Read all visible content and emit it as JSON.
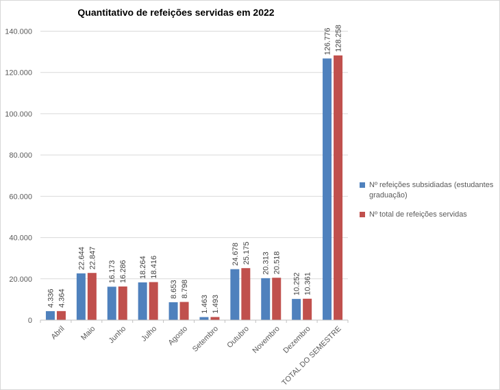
{
  "chart_data": {
    "type": "bar",
    "title": "Quantitativo de refeições servidas em 2022",
    "categories": [
      "Abril",
      "Maio",
      "Junho",
      "Julho",
      "Agosto",
      "Setembro",
      "Outubro",
      "Novembro",
      "Dezembro",
      "TOTAL DO SEMESTRE"
    ],
    "series": [
      {
        "name": "Nº refeições subsidiadas (estudantes graduação)",
        "color": "#4F81BD",
        "values": [
          4336,
          22644,
          16173,
          18264,
          8653,
          1463,
          24678,
          20313,
          10252,
          126776
        ],
        "labels": [
          "4.336",
          "22.644",
          "16.173",
          "18.264",
          "8.653",
          "1.463",
          "24.678",
          "20.313",
          "10.252",
          "126.776"
        ]
      },
      {
        "name": "Nº total de refeições servidas",
        "color": "#C0504D",
        "values": [
          4364,
          22847,
          16286,
          18416,
          8798,
          1493,
          25175,
          20518,
          10361,
          128258
        ],
        "labels": [
          "4.364",
          "22.847",
          "16.286",
          "18.416",
          "8.798",
          "1.493",
          "25.175",
          "20.518",
          "10.361",
          "128.258"
        ]
      }
    ],
    "ylim": [
      0,
      140000
    ],
    "y_ticks": [
      {
        "value": 0,
        "label": "0"
      },
      {
        "value": 20000,
        "label": "20.000"
      },
      {
        "value": 40000,
        "label": "40.000"
      },
      {
        "value": 60000,
        "label": "60.000"
      },
      {
        "value": 80000,
        "label": "80.000"
      },
      {
        "value": 100000,
        "label": "100.000"
      },
      {
        "value": 120000,
        "label": "120.000"
      },
      {
        "value": 140000,
        "label": "140.000"
      }
    ],
    "grid": true,
    "legend_position": "right",
    "colors": {
      "grid": "#D9D9D9",
      "axis": "#C0C0C0",
      "tick_text": "#595959",
      "data_label": "#3F3F3F",
      "title": "#000000"
    }
  }
}
